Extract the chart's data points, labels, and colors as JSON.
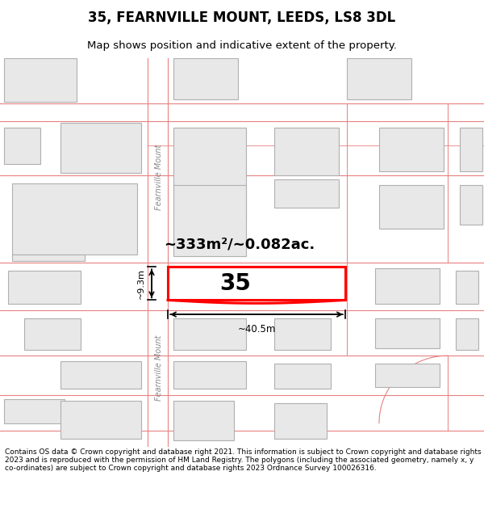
{
  "title": "35, FEARNVILLE MOUNT, LEEDS, LS8 3DL",
  "subtitle": "Map shows position and indicative extent of the property.",
  "footer": "Contains OS data © Crown copyright and database right 2021. This information is subject to Crown copyright and database rights 2023 and is reproduced with the permission of HM Land Registry. The polygons (including the associated geometry, namely x, y co-ordinates) are subject to Crown copyright and database rights 2023 Ordnance Survey 100026316.",
  "bg_color": "#ffffff",
  "map_bg": "#ffffff",
  "road_line_color": "#e88080",
  "building_fill": "#e8e8e8",
  "building_edge": "#b0b0b0",
  "highlight_fill": "#ffffff",
  "highlight_edge": "#ff0000",
  "street_name": "Fearnville Mount",
  "parcel_number": "35",
  "area_text": "~333m²/~0.082ac.",
  "width_text": "~40.5m",
  "height_text": "~9.3m",
  "title_fontsize": 12,
  "subtitle_fontsize": 9.5,
  "footer_fontsize": 6.5
}
